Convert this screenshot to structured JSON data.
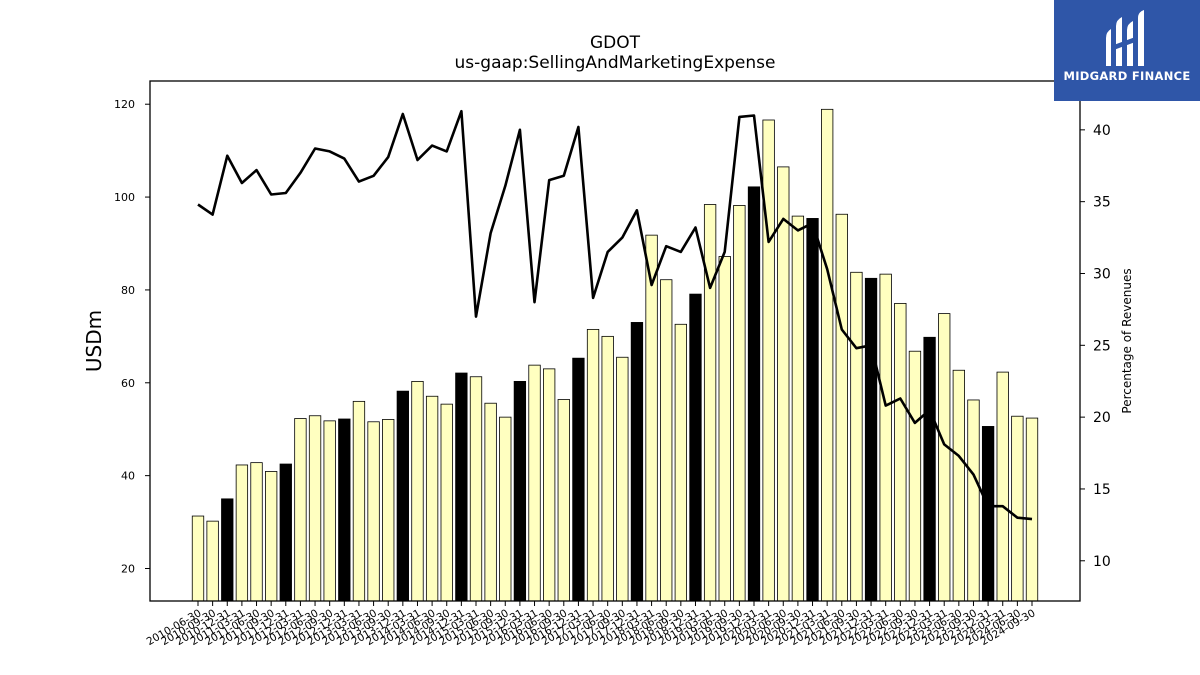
{
  "chart_data": {
    "type": "bar",
    "title": "GDOT",
    "subtitle": "us-gaap:SellingAndMarketingExpense",
    "ylabel": "USDm",
    "y2label": "Percentage of Revenues",
    "ylim": [
      13,
      125
    ],
    "y2lim": [
      7.2,
      43.4
    ],
    "yticks": [
      20,
      40,
      60,
      80,
      100,
      120
    ],
    "y2ticks": [
      10,
      15,
      20,
      25,
      30,
      35,
      40
    ],
    "categories": [
      "2010-06-30",
      "2010-09-30",
      "2010-12-31",
      "2011-03-31",
      "2011-06-30",
      "2011-09-30",
      "2011-12-31",
      "2012-03-31",
      "2012-06-30",
      "2012-09-30",
      "2012-12-31",
      "2013-03-31",
      "2013-06-30",
      "2013-09-30",
      "2013-12-31",
      "2014-03-31",
      "2014-06-30",
      "2014-09-30",
      "2014-12-31",
      "2015-03-31",
      "2015-06-30",
      "2015-09-30",
      "2015-12-31",
      "2016-03-31",
      "2016-06-30",
      "2016-09-30",
      "2016-12-31",
      "2017-03-31",
      "2017-06-30",
      "2017-09-30",
      "2017-12-31",
      "2018-03-31",
      "2018-06-30",
      "2018-09-30",
      "2018-12-31",
      "2019-03-31",
      "2019-06-30",
      "2019-09-30",
      "2019-12-31",
      "2020-03-31",
      "2020-06-30",
      "2020-09-30",
      "2020-12-31",
      "2021-03-31",
      "2021-06-30",
      "2021-09-30",
      "2021-12-31",
      "2022-03-31",
      "2022-06-30",
      "2022-09-30",
      "2022-12-31",
      "2023-03-31",
      "2023-06-30",
      "2023-09-30",
      "2023-12-31",
      "2024-03-31",
      "2024-06-30",
      "2024-09-30"
    ],
    "series": [
      {
        "kind": "bar",
        "values": [
          31.3,
          30.2,
          35.0,
          42.3,
          42.8,
          40.9,
          42.5,
          52.3,
          52.9,
          51.8,
          52.2,
          56.0,
          51.6,
          52.1,
          58.2,
          60.3,
          57.1,
          55.4,
          62.1,
          61.3,
          55.6,
          52.6,
          60.3,
          63.8,
          63.0,
          56.4,
          65.3,
          71.5,
          70.0,
          65.5,
          73.0,
          91.8,
          82.2,
          72.6,
          79.1,
          98.4,
          87.2,
          98.2,
          102.2,
          116.6,
          106.5,
          95.9,
          95.4,
          118.9,
          96.3,
          83.8,
          82.5,
          83.4,
          77.1,
          66.8,
          69.8,
          74.9,
          62.7,
          56.3,
          50.6,
          62.3,
          52.8,
          52.4
        ],
        "highlight_color": "#000000",
        "bar_color": "#ffffc0",
        "highlight_every": 4,
        "highlight_offset": 2
      },
      {
        "kind": "line",
        "axis": "right",
        "color": "#000000",
        "values": [
          34.8,
          34.1,
          38.2,
          36.3,
          37.2,
          35.5,
          35.6,
          37.0,
          38.7,
          38.5,
          38.0,
          36.4,
          36.8,
          38.1,
          41.1,
          37.9,
          38.9,
          38.5,
          41.3,
          27.0,
          32.8,
          36.1,
          40.0,
          28.0,
          36.5,
          36.8,
          40.2,
          28.3,
          31.5,
          32.5,
          34.4,
          29.2,
          31.9,
          31.5,
          33.2,
          29.0,
          31.5,
          40.9,
          41.0,
          32.2,
          33.8,
          33.0,
          33.5,
          30.3,
          26.1,
          24.8,
          25.0,
          20.8,
          21.3,
          19.6,
          20.5,
          18.1,
          17.3,
          16.0,
          13.8,
          13.8,
          13.0,
          12.9
        ]
      }
    ]
  },
  "logo": {
    "text": "MIDGARD FINANCE",
    "color": "#2f56a8"
  }
}
